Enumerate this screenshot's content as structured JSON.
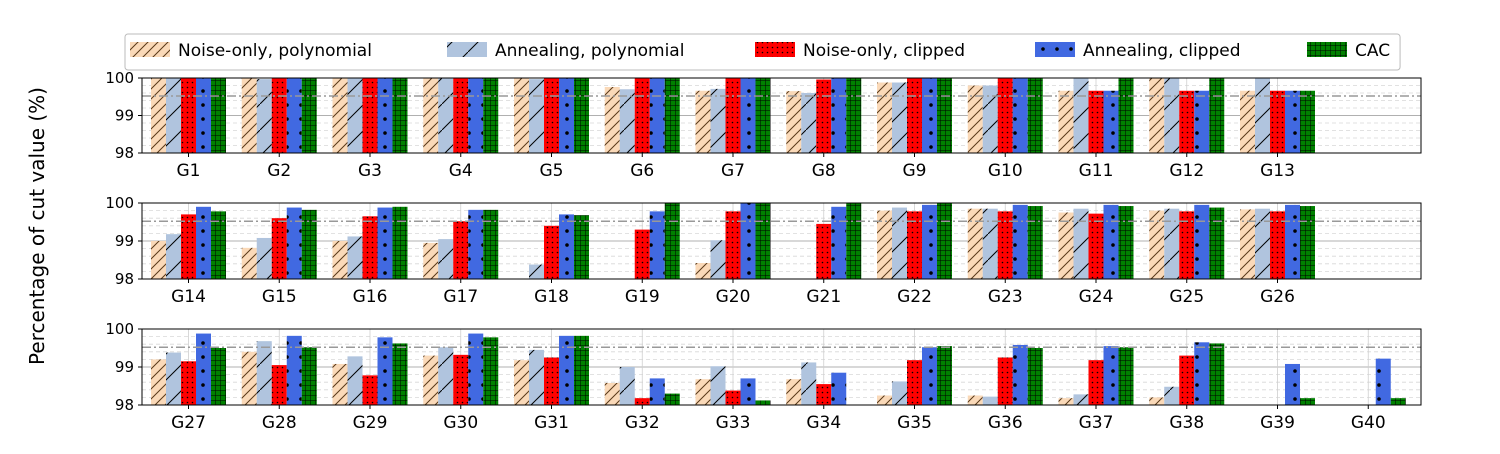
{
  "chart_data": {
    "type": "bar",
    "ylabel": "Percentage of cut value (%)",
    "ylim": [
      98,
      100
    ],
    "yticks": [
      98,
      99,
      100
    ],
    "reference_line": 99.52,
    "legend_position": "top",
    "series": [
      {
        "name": "Noise-only, polynomial",
        "key": "np",
        "color": "#fad9b8",
        "pattern": "hatch-diagonal"
      },
      {
        "name": "Annealing, polynomial",
        "key": "ap",
        "color": "#b0c4de",
        "pattern": "slash"
      },
      {
        "name": "Noise-only, clipped",
        "key": "nc",
        "color": "#ff0000",
        "pattern": "dots-small"
      },
      {
        "name": "Annealing, clipped",
        "key": "ac",
        "color": "#4169e1",
        "pattern": "dots-large"
      },
      {
        "name": "CAC",
        "key": "cac",
        "color": "#008000",
        "pattern": "grid"
      }
    ],
    "panels": [
      {
        "categories": [
          "G1",
          "G2",
          "G3",
          "G4",
          "G5",
          "G6",
          "G7",
          "G8",
          "G9",
          "G10",
          "G11",
          "G12",
          "G13"
        ],
        "values": {
          "np": [
            100,
            100,
            100,
            100,
            100,
            99.76,
            99.66,
            99.65,
            99.88,
            99.8,
            99.66,
            100,
            99.66
          ],
          "ap": [
            100,
            99.97,
            100,
            100,
            99.97,
            99.7,
            99.71,
            99.6,
            99.88,
            99.8,
            100,
            100,
            100
          ],
          "nc": [
            100,
            100,
            100,
            100,
            100,
            100,
            100,
            99.96,
            100,
            100,
            99.66,
            99.66,
            99.66
          ],
          "ac": [
            100,
            100,
            100,
            100,
            100,
            100,
            100,
            100,
            100,
            100,
            99.66,
            99.66,
            99.66
          ],
          "cac": [
            100,
            100,
            100,
            100,
            100,
            100,
            100,
            100,
            100,
            100,
            100,
            100,
            99.66
          ]
        }
      },
      {
        "categories": [
          "G14",
          "G15",
          "G16",
          "G17",
          "G18",
          "G19",
          "G20",
          "G21",
          "G22",
          "G23",
          "G24",
          "G25",
          "G26"
        ],
        "values": {
          "np": [
            99.0,
            98.82,
            99.0,
            98.95,
            null,
            null,
            98.42,
            null,
            99.8,
            99.85,
            99.75,
            99.8,
            99.83
          ],
          "ap": [
            99.18,
            99.08,
            99.12,
            99.05,
            98.38,
            null,
            99.02,
            null,
            99.88,
            99.85,
            99.85,
            99.85,
            99.85
          ],
          "nc": [
            99.7,
            99.6,
            99.65,
            99.52,
            99.4,
            99.3,
            99.78,
            99.45,
            99.78,
            99.78,
            99.72,
            99.78,
            99.78
          ],
          "ac": [
            99.9,
            99.88,
            99.88,
            99.82,
            99.7,
            99.78,
            100,
            99.9,
            99.95,
            99.95,
            99.95,
            99.95,
            99.95
          ],
          "cac": [
            99.78,
            99.82,
            99.9,
            99.82,
            99.68,
            100,
            100,
            100,
            100,
            99.92,
            99.92,
            99.88,
            99.92
          ]
        }
      },
      {
        "categories": [
          "G27",
          "G28",
          "G29",
          "G30",
          "G31",
          "G32",
          "G33",
          "G34",
          "G35",
          "G36",
          "G37",
          "G38",
          "G39",
          "G40"
        ],
        "values": {
          "np": [
            99.2,
            99.4,
            99.08,
            99.3,
            99.18,
            98.58,
            98.68,
            98.68,
            98.25,
            98.25,
            98.18,
            98.2,
            null,
            null
          ],
          "ap": [
            99.38,
            99.68,
            99.28,
            99.52,
            99.45,
            99.0,
            99.02,
            99.12,
            98.62,
            98.22,
            98.28,
            98.48,
            null,
            null
          ],
          "nc": [
            99.15,
            99.05,
            98.78,
            99.32,
            99.25,
            98.18,
            98.38,
            98.55,
            99.18,
            99.25,
            99.18,
            99.3,
            null,
            null
          ],
          "ac": [
            99.88,
            99.82,
            99.78,
            99.88,
            99.82,
            98.7,
            98.7,
            98.85,
            99.52,
            99.58,
            99.55,
            99.65,
            99.08,
            99.22
          ],
          "cac": [
            99.5,
            99.52,
            99.62,
            99.78,
            99.82,
            98.3,
            98.12,
            null,
            99.55,
            99.5,
            99.52,
            99.62,
            98.18,
            98.18
          ]
        }
      }
    ]
  }
}
